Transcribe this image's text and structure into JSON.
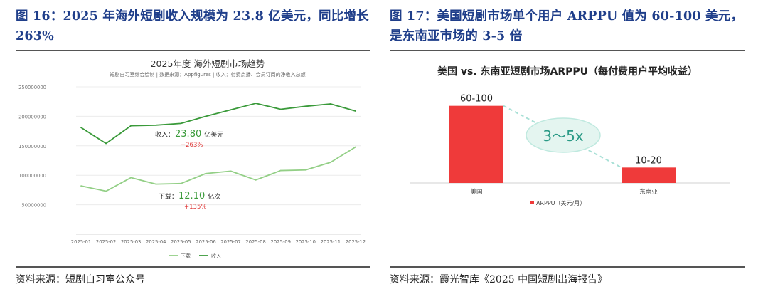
{
  "left": {
    "figure_title": "图 16：2025 年海外短剧收入规模为 23.8 亿美元，同比增长 263%",
    "source": "资料来源：短剧自习室公众号"
  },
  "right": {
    "figure_title": "图 17：美国短剧市场单个用户 ARPPU 值为 60-100 美元，是东南亚市场的 3-5 倍",
    "source": "资料来源：霞光智库《2025 中国短剧出海报告》"
  },
  "colors": {
    "title": "#1f3e8a",
    "revenue": "#3a9a3a",
    "downloads": "#93cf86",
    "accent_red": "#e03535",
    "bar": "#ef3a3a",
    "bubble": "#e4f5f0",
    "bubble_text": "#2a9a86"
  },
  "chart_data": [
    {
      "type": "line",
      "title": "2025年度 海外短剧市场趋势",
      "subtitle": "短剧自习室综合绘制 | 数据来源：Appfigures | 收入：付费点播、会员订阅的净收入总额",
      "categories": [
        "2025-01",
        "2025-02",
        "2025-03",
        "2025-04",
        "2025-05",
        "2025-06",
        "2025-07",
        "2025-08",
        "2025-09",
        "2025-10",
        "2025-11",
        "2025-12"
      ],
      "ylim": [
        0,
        250000000
      ],
      "yticks": [
        50000000,
        100000000,
        150000000,
        200000000,
        250000000
      ],
      "ytick_labels": [
        "50000000",
        "100000000",
        "150000000",
        "200000000",
        "250000000"
      ],
      "grid": true,
      "series": [
        {
          "name": "下载",
          "values": [
            82000000,
            73000000,
            96000000,
            85000000,
            86000000,
            103000000,
            107000000,
            92000000,
            108000000,
            109000000,
            122000000,
            148000000
          ]
        },
        {
          "name": "收入",
          "values": [
            181000000,
            154000000,
            184000000,
            185000000,
            188000000,
            200000000,
            211000000,
            222000000,
            212000000,
            217000000,
            221000000,
            209000000
          ]
        }
      ],
      "annotations": [
        {
          "prefix": "收入：",
          "value": "23.80",
          "unit": "亿美元",
          "growth": "+263%"
        },
        {
          "prefix": "下载：",
          "value": "12.10",
          "unit": "亿次",
          "growth": "+135%"
        }
      ],
      "legend_position": "bottom-center"
    },
    {
      "type": "bar",
      "title": "美国 vs. 东南亚短剧市场ARPPU（每付费用户平均收益）",
      "categories": [
        "美国",
        "东南亚"
      ],
      "ranges": [
        [
          60,
          100
        ],
        [
          10,
          20
        ]
      ],
      "values": [
        100,
        20
      ],
      "bar_labels": [
        "60-100",
        "10-20"
      ],
      "ylim": [
        0,
        120
      ],
      "ratio_label": "3～5x",
      "legend": "ARPPU（美元/月）",
      "legend_position": "bottom-left"
    }
  ]
}
